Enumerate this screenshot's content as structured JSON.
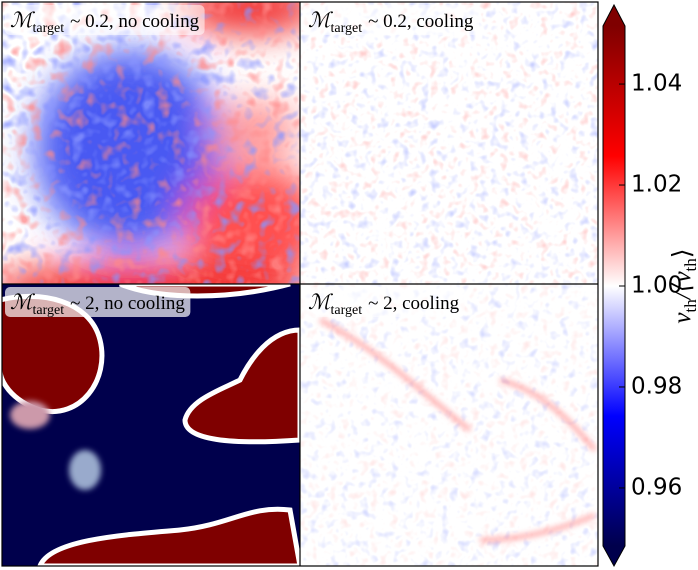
{
  "chart_data": {
    "type": "heatmap",
    "panels": [
      {
        "symbol": "ℳ",
        "subscript": "target",
        "text": "~ 0.2, no cooling"
      },
      {
        "symbol": "ℳ",
        "subscript": "target",
        "text": "~ 0.2, cooling"
      },
      {
        "symbol": "ℳ",
        "subscript": "target",
        "text": "~ 2, no cooling"
      },
      {
        "symbol": "ℳ",
        "subscript": "target",
        "text": "~ 2, cooling"
      }
    ],
    "colorbar": {
      "label_parts": [
        "v",
        "th",
        "/⟨v",
        "th",
        "⟩"
      ],
      "lim": [
        0.9485,
        1.0515
      ],
      "ticks": [
        {
          "value": 0.96,
          "label": "0.96"
        },
        {
          "value": 0.98,
          "label": "0.98"
        },
        {
          "value": 1.0,
          "label": "1.00"
        },
        {
          "value": 1.02,
          "label": "1.02"
        },
        {
          "value": 1.04,
          "label": "1.04"
        }
      ],
      "colormap": [
        "#00004c",
        "#0000ff",
        "#ffffff",
        "#ff0000",
        "#7f0000"
      ]
    }
  }
}
